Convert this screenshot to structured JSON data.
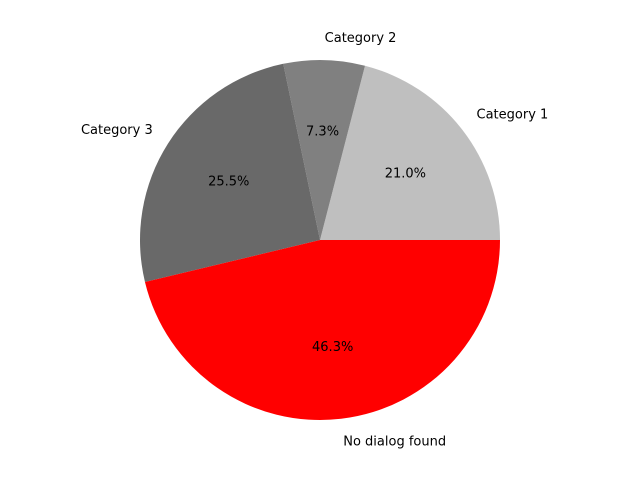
{
  "chart_data": {
    "type": "pie",
    "title": "",
    "start_angle_deg": 0,
    "direction": "counterclockwise",
    "slices": [
      {
        "label": "Category 1",
        "value": 21.0,
        "percent_label": "21.0%",
        "color": "#bfbfbf"
      },
      {
        "label": "Category 2",
        "value": 7.3,
        "percent_label": "7.3%",
        "color": "#808080"
      },
      {
        "label": "Category 3",
        "value": 25.5,
        "percent_label": "25.5%",
        "color": "#696969"
      },
      {
        "label": "No dialog found",
        "value": 46.3,
        "percent_label": "46.3%",
        "color": "#ff0000"
      }
    ]
  }
}
